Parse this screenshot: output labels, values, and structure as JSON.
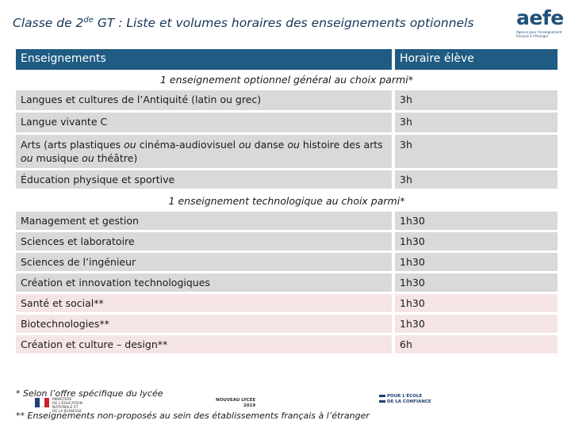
{
  "title": {
    "prefix": "Classe de 2",
    "sup": "de",
    "suffix": " GT : Liste et volumes horaires des enseignements optionnels"
  },
  "logo": {
    "name": "aefe",
    "subtitle": "Agence pour l'enseignement français à l'étranger"
  },
  "table": {
    "headers": [
      "Enseignements",
      "Horaire élève"
    ],
    "sections": [
      {
        "title": "1 enseignement optionnel général au choix parmi*",
        "rows": [
          {
            "label": "Langues et cultures de l’Antiquité (latin ou grec)",
            "hours": "3h"
          },
          {
            "label": "Langue vivante C",
            "hours": "3h"
          },
          {
            "label_parts": [
              "Arts (arts plastiques ",
              "ou",
              " cinéma-audiovisuel ",
              "ou",
              " danse ",
              "ou",
              " histoire des arts ",
              "ou",
              " musique ",
              "ou",
              " théâtre)"
            ],
            "hours": "3h"
          },
          {
            "label": "Éducation physique et sportive",
            "hours": "3h"
          }
        ]
      },
      {
        "title": "1 enseignement technologique au choix parmi*",
        "rows": [
          {
            "label": "Management et gestion",
            "hours": "1h30"
          },
          {
            "label": "Sciences et laboratoire",
            "hours": "1h30"
          },
          {
            "label": "Sciences de l’ingénieur",
            "hours": "1h30"
          },
          {
            "label": "Création et innovation technologiques",
            "hours": "1h30"
          },
          {
            "label": "Santé et social**",
            "hours": "1h30"
          },
          {
            "label": "Biotechnologies**",
            "hours": "1h30"
          },
          {
            "label": "Création et culture – design**",
            "hours": "6h"
          }
        ]
      }
    ]
  },
  "notes": [
    "* Selon l’offre spécifique du lycée",
    "** Enseignements non-proposés au sein des établissements français à l’étranger"
  ],
  "footer": {
    "ministere": [
      "MINISTÈRE",
      "DE L'ÉDUCATION",
      "NATIONALE ET",
      "DE LA JEUNESSE"
    ],
    "lycee": [
      "NOUVEAU LYCÉE",
      "2019"
    ],
    "confiance": [
      "POUR L'ÉCOLE",
      "DE LA CONFIANCE"
    ]
  },
  "colors": {
    "header": "#1f5b82",
    "row": "#d9d9d9",
    "row_pink": "#f4e1e1",
    "title": "#16365c"
  }
}
